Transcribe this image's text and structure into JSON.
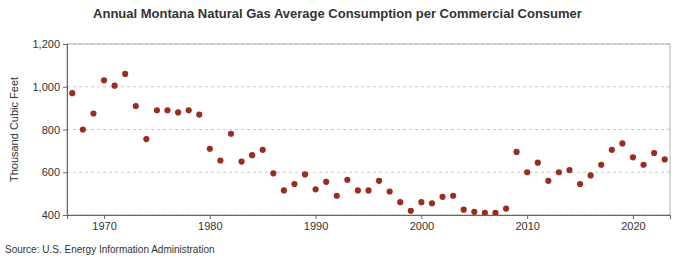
{
  "chart_data": {
    "type": "scatter",
    "title": "Annual Montana Natural Gas Average Consumption per Commercial Consumer",
    "y_label": "Thousand Cubic Feet",
    "source": "Source: U.S. Energy Information Administration",
    "x": [
      1967,
      1968,
      1969,
      1970,
      1971,
      1972,
      1973,
      1974,
      1975,
      1976,
      1977,
      1978,
      1979,
      1980,
      1981,
      1982,
      1983,
      1984,
      1985,
      1986,
      1987,
      1988,
      1989,
      1990,
      1991,
      1992,
      1993,
      1994,
      1995,
      1996,
      1997,
      1998,
      1999,
      2000,
      2001,
      2002,
      2003,
      2004,
      2005,
      2006,
      2007,
      2008,
      2009,
      2010,
      2011,
      2012,
      2013,
      2014,
      2015,
      2016,
      2017,
      2018,
      2019,
      2020,
      2021,
      2022,
      2023
    ],
    "values": [
      970,
      800,
      875,
      1030,
      1005,
      1060,
      910,
      755,
      890,
      890,
      880,
      890,
      870,
      710,
      655,
      780,
      650,
      680,
      705,
      595,
      515,
      545,
      590,
      520,
      555,
      490,
      565,
      515,
      515,
      560,
      510,
      460,
      420,
      460,
      455,
      485,
      490,
      425,
      415,
      410,
      410,
      430,
      695,
      600,
      645,
      560,
      600,
      610,
      545,
      585,
      635,
      705,
      735,
      670,
      635,
      690,
      660
    ],
    "color": "#9b2d1f",
    "marker": "circle",
    "xlim": [
      1966.5,
      2023.5
    ],
    "xticks": [
      1970,
      1980,
      1990,
      2000,
      2010,
      2020
    ],
    "ylim": [
      400,
      1200
    ],
    "yticks": [
      400,
      600,
      800,
      {
        "value": 1000,
        "label": "1,000"
      },
      {
        "value": 1200,
        "label": "1,200"
      }
    ],
    "grid": true
  }
}
